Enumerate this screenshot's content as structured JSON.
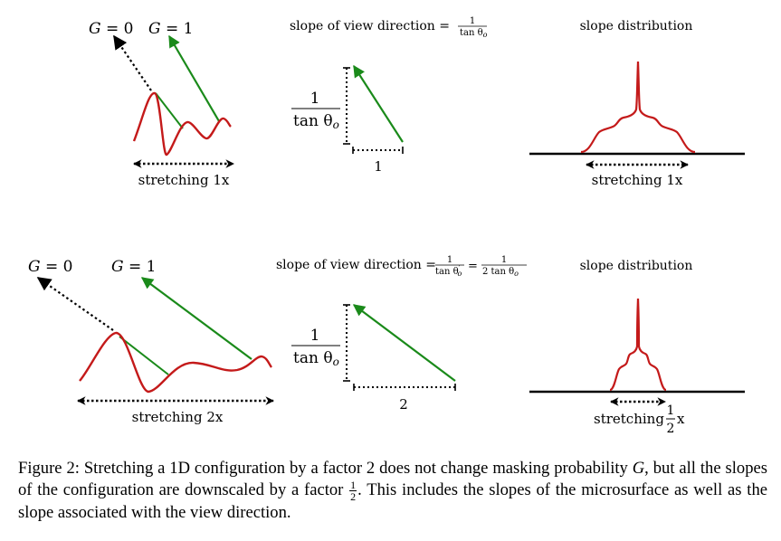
{
  "colors": {
    "green": "#1a8a1a",
    "red": "#c41a1a",
    "black": "#000000"
  },
  "row1": {
    "g0": {
      "lhs": "G",
      "rhs": "= 0"
    },
    "g1": {
      "lhs": "G",
      "rhs": "= 1"
    },
    "slope_title_text": "slope of view direction =",
    "slope_frac_num": "1",
    "slope_frac_den": "tan θ",
    "slope_frac_den_sub": "o",
    "triangle_v_num": "1",
    "triangle_v_den": "tan θ",
    "triangle_v_den_sub": "o",
    "triangle_h_label": "1",
    "stretch_label": "stretching 1x",
    "dist_title": "slope distribution",
    "dist_stretch_label": "stretching 1x"
  },
  "row2": {
    "g0": {
      "lhs": "G",
      "rhs": "= 0"
    },
    "g1": {
      "lhs": "G",
      "rhs": "= 1"
    },
    "slope_title_text": "slope of view direction =",
    "slope_frac1_num": "1",
    "slope_frac1_den": "tan θ",
    "slope_frac1_den_sup": "′",
    "slope_frac1_den_sub": "o",
    "slope_eq": "=",
    "slope_frac2_num": "1",
    "slope_frac2_den": "2 tan θ",
    "slope_frac2_den_sub": "o",
    "triangle_v_num": "1",
    "triangle_v_den": "tan θ",
    "triangle_v_den_sub": "o",
    "triangle_h_label": "2",
    "stretch_label": "stretching 2x",
    "dist_title": "slope distribution",
    "dist_stretch_word": "stretching",
    "dist_stretch_num": "1",
    "dist_stretch_den": "2",
    "dist_stretch_x": "x"
  },
  "caption": {
    "prefix": "Figure 2: Stretching a 1D configuration by a factor 2 does not change masking probability",
    "var_g": "G",
    "mid": ", but all the slopes of the configuration are downscaled by a factor",
    "frac_num": "1",
    "frac_den": "2",
    "suffix": ". This includes the slopes of the microsurface as well as the slope associated with the view direction."
  }
}
